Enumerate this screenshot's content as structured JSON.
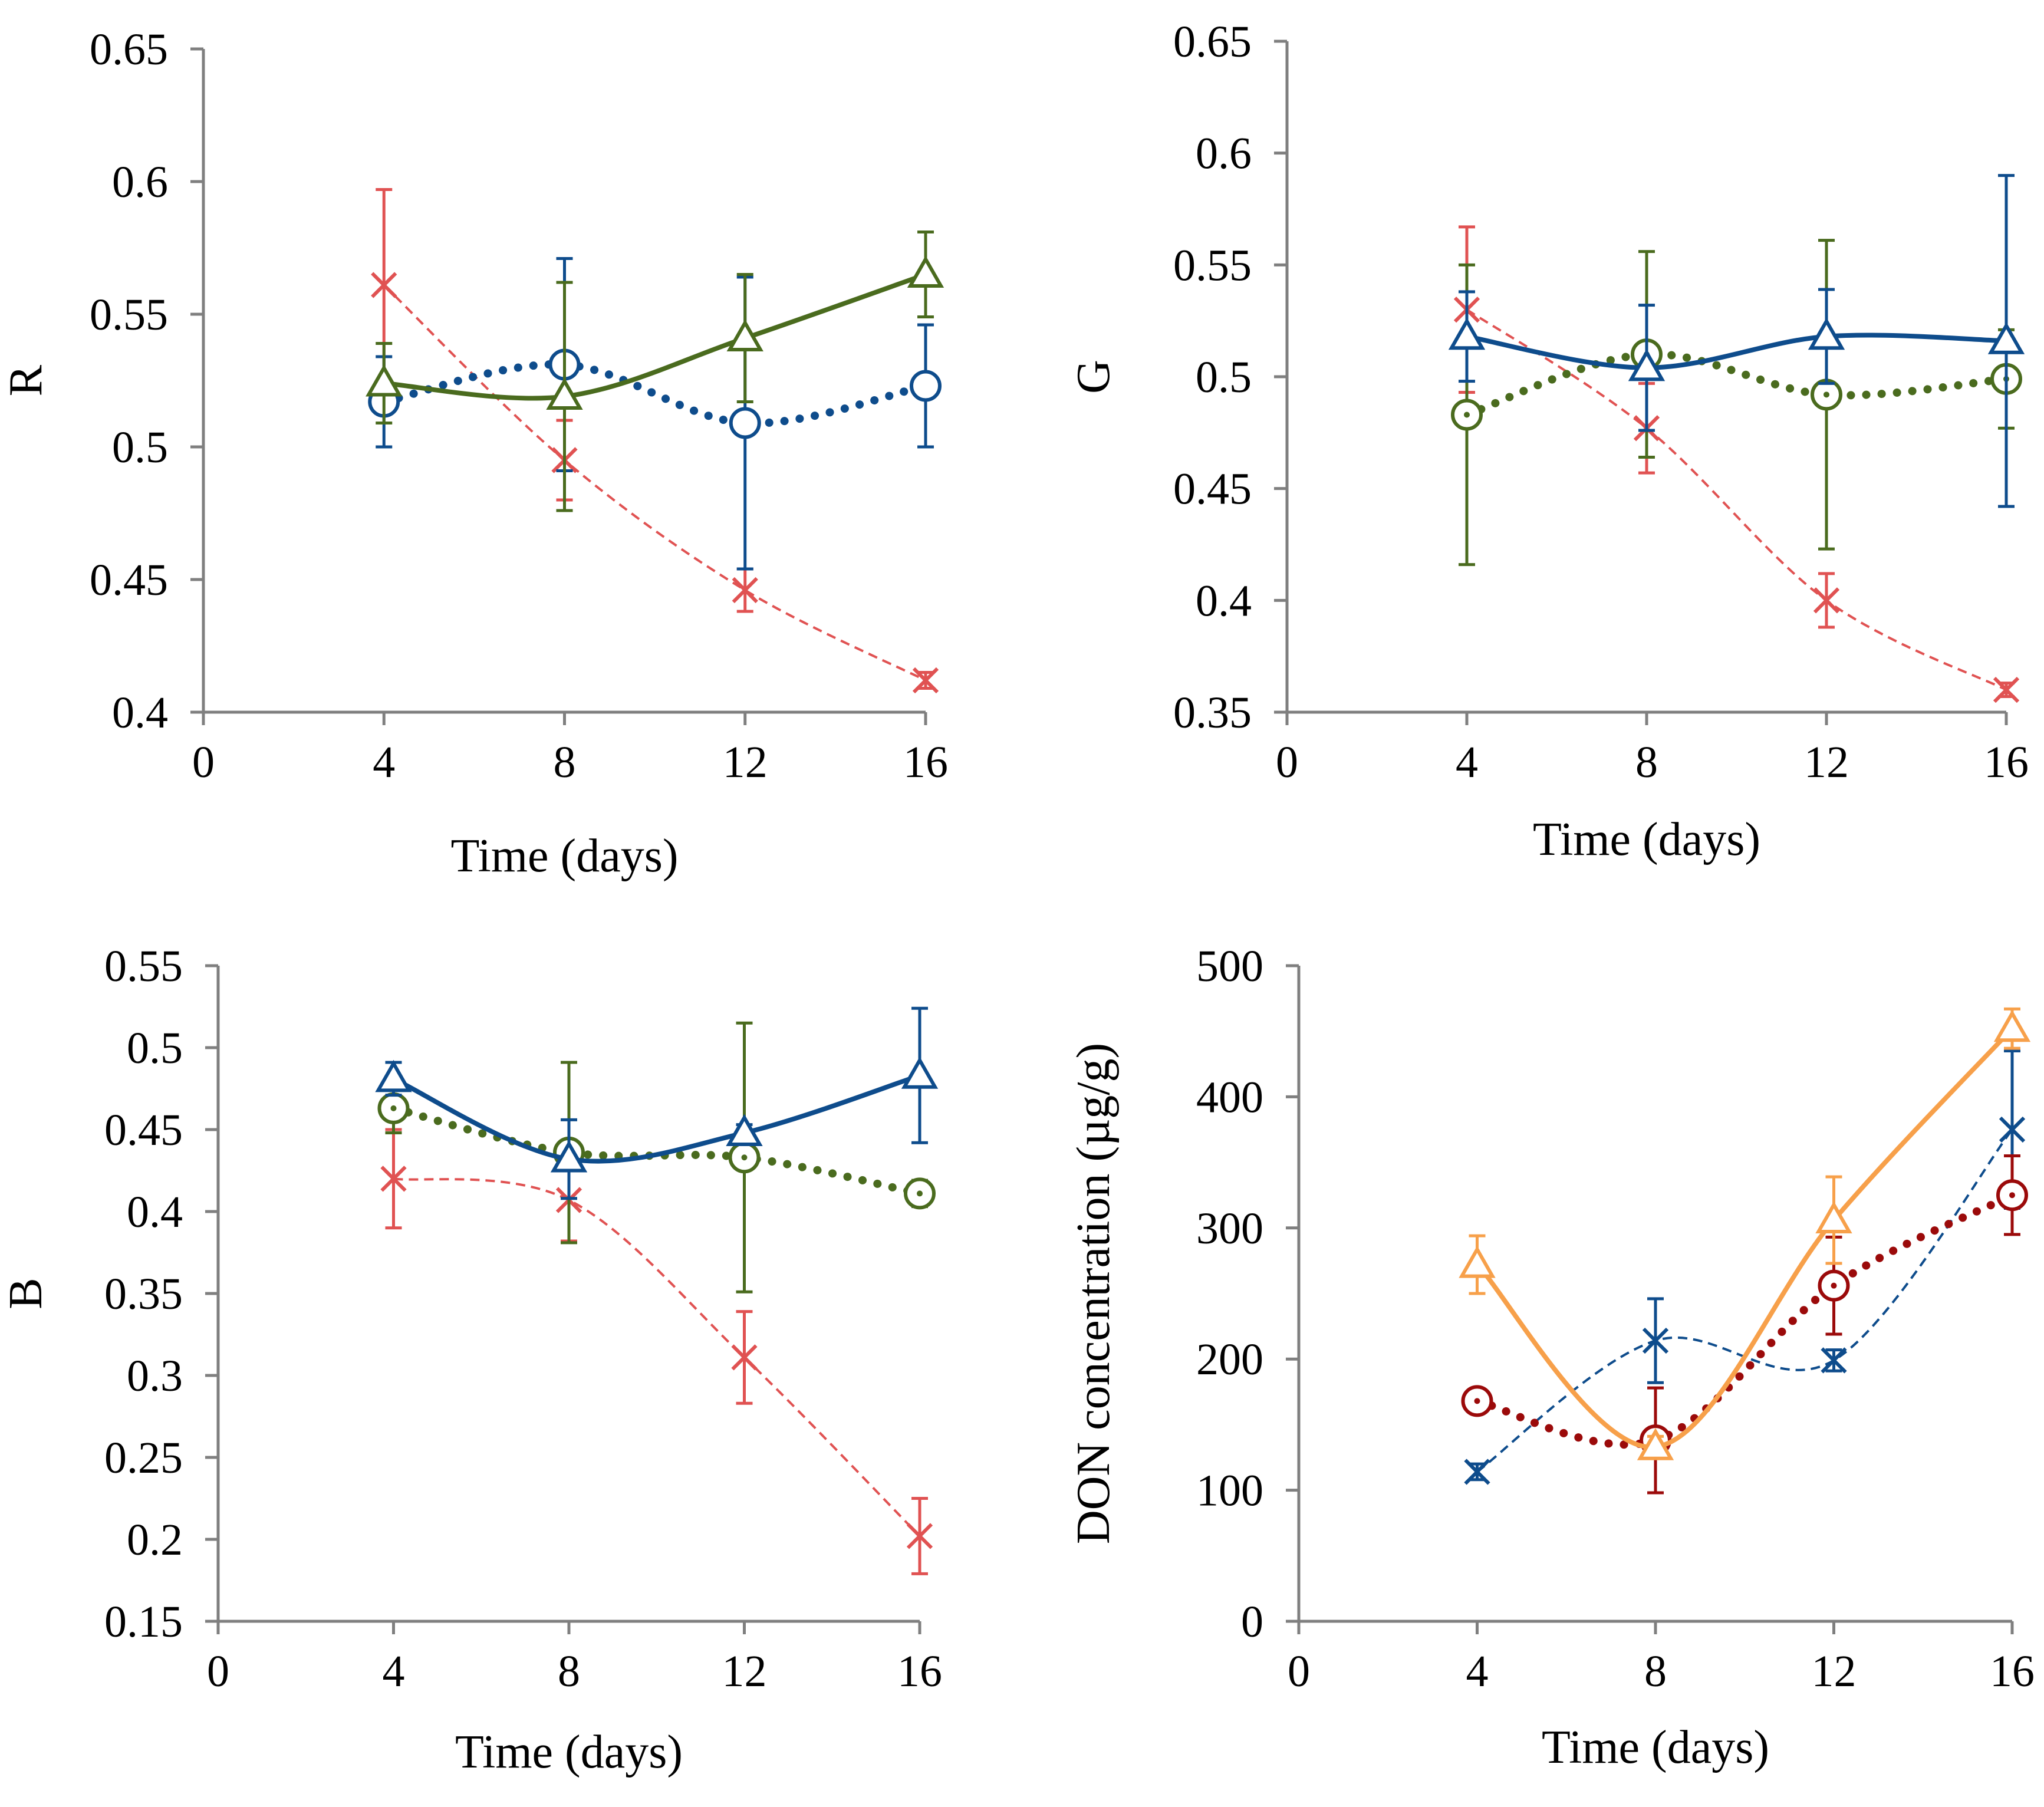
{
  "chart_data": [
    {
      "id": "R",
      "type": "line",
      "title": "",
      "xlabel": "Time (days)",
      "ylabel": "R",
      "xlim": [
        0,
        16
      ],
      "ylim": [
        0.4,
        0.65
      ],
      "xticks": [
        "0",
        "4",
        "8",
        "12",
        "16"
      ],
      "yticks": [
        "0.4",
        "0.45",
        "0.5",
        "0.55",
        "0.6",
        "0.65"
      ],
      "grid": false,
      "series": [
        {
          "name": "red-cross",
          "color": "#e05252",
          "marker": "cross",
          "line": "dashed",
          "x": [
            4,
            8,
            12,
            16
          ],
          "y": [
            0.561,
            0.495,
            0.446,
            0.412
          ],
          "err": [
            0.036,
            0.015,
            0.008,
            0.003
          ]
        },
        {
          "name": "blue-circle",
          "color": "#0e4c8c",
          "marker": "circle",
          "line": "dotted",
          "x": [
            4,
            8,
            12,
            16
          ],
          "y": [
            0.517,
            0.531,
            0.509,
            0.523
          ],
          "err": [
            0.017,
            0.04,
            0.055,
            0.023
          ]
        },
        {
          "name": "green-triangle",
          "color": "#4a6b1e",
          "marker": "triangle",
          "line": "solid",
          "x": [
            4,
            8,
            12,
            16
          ],
          "y": [
            0.524,
            0.519,
            0.541,
            0.565
          ],
          "err": [
            0.015,
            0.043,
            0.024,
            0.016
          ]
        }
      ]
    },
    {
      "id": "G",
      "type": "line",
      "title": "",
      "xlabel": "Time (days)",
      "ylabel": "G",
      "xlim": [
        0,
        16
      ],
      "ylim": [
        0.35,
        0.65
      ],
      "xticks": [
        "0",
        "4",
        "8",
        "12",
        "16"
      ],
      "yticks": [
        "0.35",
        "0.4",
        "0.45",
        "0.5",
        "0.55",
        "0.6",
        "0.65"
      ],
      "grid": false,
      "series": [
        {
          "name": "red-cross",
          "color": "#e05252",
          "marker": "cross",
          "line": "dashed",
          "x": [
            4,
            8,
            12,
            16
          ],
          "y": [
            0.53,
            0.477,
            0.4,
            0.36
          ],
          "err": [
            0.037,
            0.02,
            0.012,
            0.003
          ]
        },
        {
          "name": "green-circle",
          "color": "#4a6b1e",
          "marker": "circle-dot",
          "line": "dotted",
          "x": [
            4,
            8,
            12,
            16
          ],
          "y": [
            0.483,
            0.51,
            0.492,
            0.499
          ],
          "err": [
            0.067,
            0.046,
            0.069,
            0.022
          ]
        },
        {
          "name": "blue-triangle",
          "color": "#0e4c8c",
          "marker": "triangle",
          "line": "solid",
          "x": [
            4,
            8,
            12,
            16
          ],
          "y": [
            0.518,
            0.504,
            0.518,
            0.516
          ],
          "err": [
            0.02,
            0.028,
            0.021,
            0.074
          ]
        }
      ]
    },
    {
      "id": "B",
      "type": "line",
      "title": "",
      "xlabel": "Time (days)",
      "ylabel": "B",
      "xlim": [
        0,
        16
      ],
      "ylim": [
        0.15,
        0.55
      ],
      "xticks": [
        "0",
        "4",
        "8",
        "12",
        "16"
      ],
      "yticks": [
        "0.15",
        "0.2",
        "0.25",
        "0.3",
        "0.35",
        "0.4",
        "0.45",
        "0.5",
        "0.55"
      ],
      "grid": false,
      "series": [
        {
          "name": "red-cross",
          "color": "#e05252",
          "marker": "cross",
          "line": "dashed",
          "x": [
            4,
            8,
            12,
            16
          ],
          "y": [
            0.42,
            0.407,
            0.311,
            0.202
          ],
          "err": [
            0.03,
            0.025,
            0.028,
            0.023
          ]
        },
        {
          "name": "green-circle",
          "color": "#4a6b1e",
          "marker": "circle-dot",
          "line": "dotted",
          "x": [
            4,
            8,
            12,
            16
          ],
          "y": [
            0.463,
            0.436,
            0.433,
            0.411
          ],
          "err": [
            0.015,
            0.055,
            0.082,
            0.008
          ]
        },
        {
          "name": "blue-triangle",
          "color": "#0e4c8c",
          "marker": "triangle",
          "line": "solid",
          "x": [
            4,
            8,
            12,
            16
          ],
          "y": [
            0.481,
            0.432,
            0.448,
            0.483
          ],
          "err": [
            0.01,
            0.024,
            0.005,
            0.041
          ]
        }
      ]
    },
    {
      "id": "DON",
      "type": "line",
      "title": "",
      "xlabel": "Time (days)",
      "ylabel": "DON concentration (µg/g)",
      "xlim": [
        0,
        16
      ],
      "ylim": [
        0,
        500
      ],
      "xticks": [
        "0",
        "4",
        "8",
        "12",
        "16"
      ],
      "yticks": [
        "0",
        "100",
        "200",
        "300",
        "400",
        "500"
      ],
      "grid": false,
      "series": [
        {
          "name": "blue-cross",
          "color": "#0e4c8c",
          "marker": "cross-bar",
          "line": "dashed",
          "x": [
            4,
            8,
            12,
            16
          ],
          "y": [
            114,
            214,
            199,
            375
          ],
          "err": [
            6,
            32,
            8,
            60
          ]
        },
        {
          "name": "darkred-circle",
          "color": "#9b0a0a",
          "marker": "circle-dot",
          "line": "dotted",
          "x": [
            4,
            8,
            12,
            16
          ],
          "y": [
            168,
            138,
            256,
            325
          ],
          "err": [
            4,
            40,
            37,
            30
          ]
        },
        {
          "name": "orange-triangle",
          "color": "#f7a04a",
          "marker": "triangle",
          "line": "solid",
          "x": [
            4,
            8,
            12,
            16
          ],
          "y": [
            272,
            133,
            306,
            452
          ],
          "err": [
            22,
            8,
            33,
            15
          ]
        }
      ]
    }
  ]
}
